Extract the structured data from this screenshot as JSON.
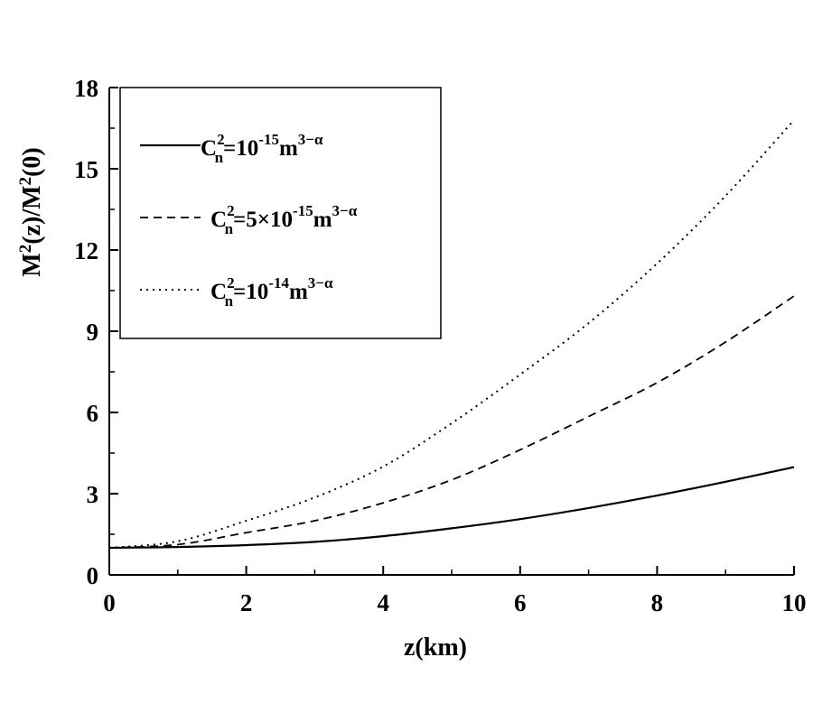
{
  "chart_data": {
    "type": "line",
    "xlabel": "z(km)",
    "ylabel_parts": [
      "M",
      "2",
      "(z)/M",
      "2",
      "(0)"
    ],
    "xlim": [
      0,
      10
    ],
    "ylim": [
      0,
      18
    ],
    "xticks": [
      0,
      2,
      4,
      6,
      8,
      10
    ],
    "yticks": [
      0,
      3,
      6,
      9,
      12,
      15,
      18
    ],
    "grid": false,
    "legend_position": "top-left",
    "series": [
      {
        "legend_parts": [
          "C",
          "2",
          "n",
          "=10",
          "-15",
          "m",
          "3−α"
        ],
        "line_style": "solid",
        "color": "#000000",
        "x": [
          0,
          1,
          2,
          3,
          4,
          5,
          6,
          7,
          8,
          9,
          10
        ],
        "y": [
          1.0,
          1.03,
          1.1,
          1.22,
          1.43,
          1.72,
          2.06,
          2.47,
          2.93,
          3.44,
          3.98
        ]
      },
      {
        "legend_parts": [
          "C",
          "2",
          "n",
          "=5×10",
          "-15",
          "m",
          "3−α"
        ],
        "line_style": "dashed",
        "color": "#000000",
        "x": [
          0,
          1,
          2,
          3,
          4,
          5,
          6,
          7,
          8,
          9,
          10
        ],
        "y": [
          1.0,
          1.12,
          1.56,
          2.0,
          2.66,
          3.51,
          4.62,
          5.85,
          7.1,
          8.6,
          10.3
        ]
      },
      {
        "legend_parts": [
          "C",
          "2",
          "n",
          "=10",
          "-14",
          "m",
          "3−α"
        ],
        "line_style": "dotted",
        "color": "#000000",
        "x": [
          0,
          1,
          2,
          3,
          4,
          5,
          6,
          7,
          8,
          9,
          10
        ],
        "y": [
          1.0,
          1.24,
          2.0,
          2.86,
          4.0,
          5.6,
          7.4,
          9.3,
          11.5,
          14.0,
          16.8
        ]
      }
    ]
  }
}
